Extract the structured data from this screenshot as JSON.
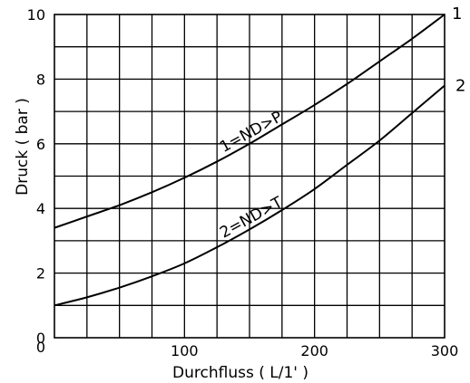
{
  "chart_data": {
    "type": "line",
    "xlabel": "Durchfluss ( L/1' )",
    "ylabel": "Druck ( bar )",
    "xlim": [
      0,
      300
    ],
    "ylim": [
      0,
      10
    ],
    "x_ticks": [
      0,
      100,
      200,
      300
    ],
    "y_ticks": [
      0,
      2,
      4,
      6,
      8,
      10
    ],
    "x_tick_labels": [
      "0",
      "100",
      "200",
      "300"
    ],
    "y_tick_labels": [
      "0",
      "2",
      "4",
      "6",
      "8",
      "10"
    ],
    "grid": true,
    "x": [
      0,
      25,
      50,
      75,
      100,
      125,
      150,
      175,
      200,
      225,
      250,
      275,
      300
    ],
    "series": [
      {
        "name": "1",
        "label": "1=ND>P",
        "values": [
          3.4,
          3.75,
          4.1,
          4.5,
          4.95,
          5.45,
          6.0,
          6.6,
          7.2,
          7.85,
          8.55,
          9.25,
          10.0
        ]
      },
      {
        "name": "2",
        "label": "2=ND>T",
        "values": [
          1.0,
          1.25,
          1.55,
          1.9,
          2.3,
          2.8,
          3.35,
          3.95,
          4.6,
          5.35,
          6.1,
          6.95,
          7.8
        ]
      }
    ]
  }
}
